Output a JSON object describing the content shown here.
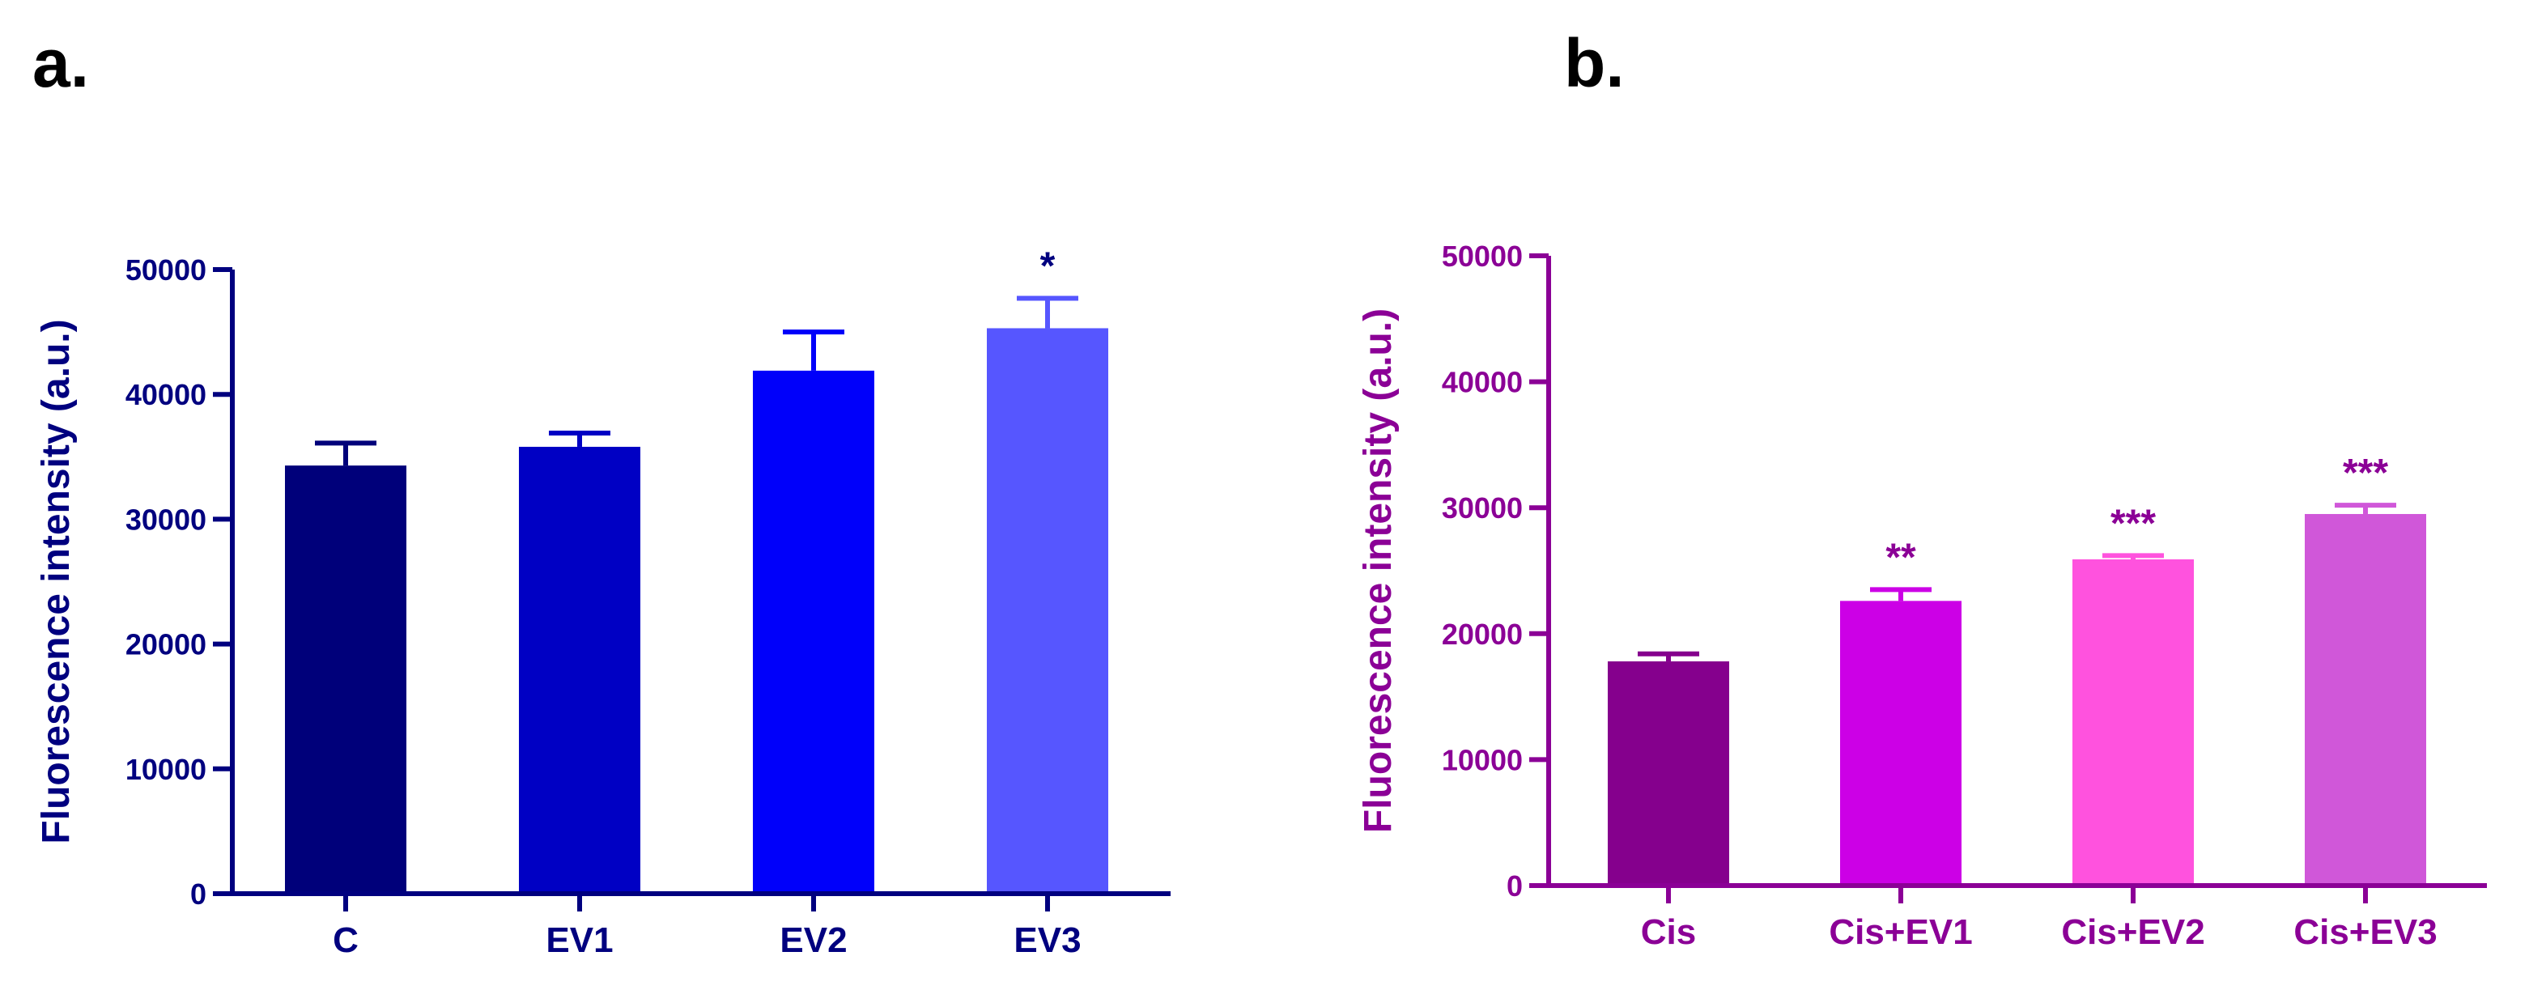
{
  "panels": {
    "a": {
      "label": "a."
    },
    "b": {
      "label": "b."
    }
  },
  "chart_data": [
    {
      "type": "bar",
      "panel": "a.",
      "title": "",
      "xlabel": "",
      "ylabel": "Fluorescence intensity (a.u.)",
      "ylim": [
        0,
        50000
      ],
      "yticks": [
        0,
        10000,
        20000,
        30000,
        40000,
        50000
      ],
      "categories": [
        "C",
        "EV1",
        "EV2",
        "EV3"
      ],
      "values": [
        34300,
        35800,
        41900,
        45300
      ],
      "errors": [
        1800,
        1100,
        3100,
        2400
      ],
      "annotations": [
        "",
        "",
        "",
        "*"
      ],
      "axis_color": "#00007f",
      "bar_colors": [
        "#00007a",
        "#0000c4",
        "#0000fa",
        "#5656ff"
      ],
      "grid": false,
      "legend": "none"
    },
    {
      "type": "bar",
      "panel": "b.",
      "title": "",
      "xlabel": "",
      "ylabel": "Fluorescence intensity (a.u.)",
      "ylim": [
        0,
        50000
      ],
      "yticks": [
        0,
        10000,
        20000,
        30000,
        40000,
        50000
      ],
      "categories": [
        "Cis",
        "Cis+EV1",
        "Cis+EV2",
        "Cis+EV3"
      ],
      "values": [
        17800,
        22600,
        25900,
        29500
      ],
      "errors": [
        600,
        900,
        300,
        700
      ],
      "annotations": [
        "",
        "**",
        "***",
        "***"
      ],
      "axis_color": "#8b0096",
      "bar_colors": [
        "#85008d",
        "#cc00e6",
        "#ff52de",
        "#d057d9"
      ],
      "grid": false,
      "legend": "none"
    }
  ]
}
